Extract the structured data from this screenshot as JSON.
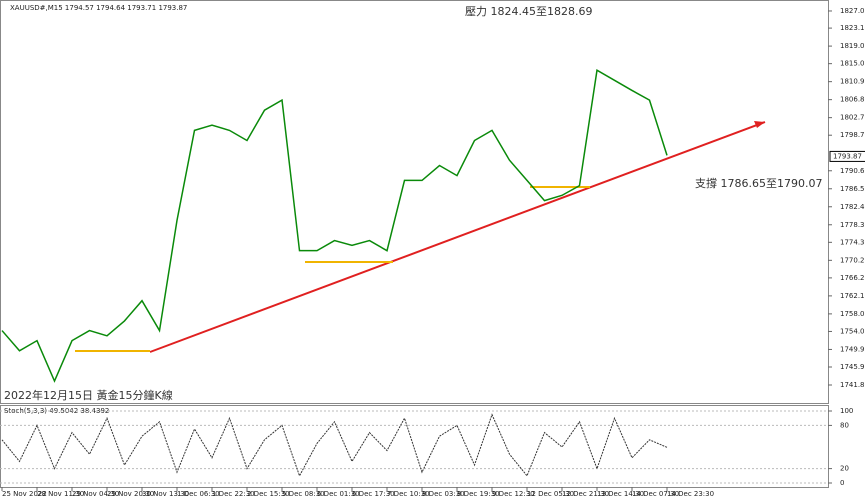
{
  "chart_data": [
    {
      "type": "line",
      "title": "XAUUSD#,M15 1794.57 1794.64 1793.71 1793.87",
      "annotations": [
        "壓力 1824.45至1828.69",
        "支撐 1786.65至1790.07",
        "2022年12月15日 黃金15分鐘K線"
      ],
      "categories": [
        "25 Nov 2022",
        null,
        "28 Nov 11:30",
        null,
        "29 Nov 04:30",
        null,
        "29 Nov 20:30",
        null,
        "30 Nov 13:30",
        null,
        "1 Dec 06:30",
        null,
        "1 Dec 22:30",
        null,
        "2 Dec 15:30",
        null,
        "5 Dec 08:30",
        null,
        "6 Dec 01:30",
        null,
        "6 Dec 17:30",
        null,
        "7 Dec 10:30",
        null,
        "8 Dec 03:30",
        null,
        "8 Dec 19:30",
        null,
        "9 Dec 12:30",
        null,
        "12 Dec 05:30",
        null,
        "12 Dec 21:30",
        null,
        "13 Dec 14:30",
        null,
        "14 Dec 07:30",
        null,
        "14 Dec 23:30"
      ],
      "series": [
        {
          "color": "#0a8a0a",
          "values": [
            1754.2,
            1749.6,
            1751.9,
            1742.7,
            1751.9,
            1754.2,
            1753.0,
            1756.4,
            1761.0,
            1754.2,
            1779.3,
            1799.8,
            1801.0,
            1799.8,
            1797.5,
            1804.4,
            1806.7,
            1772.4,
            1772.4,
            1774.7,
            1773.6,
            1774.7,
            1772.4,
            1788.4,
            1788.4,
            1791.8,
            1789.5,
            1797.5,
            1799.8,
            1793.0,
            1788.4,
            1783.8,
            1785.0,
            1787.2,
            1813.5,
            1811.2,
            1808.9,
            1806.7,
            1794.1
          ]
        }
      ],
      "ylim": [
        1737.7,
        1829.5
      ],
      "yticks": [
        {
          "value": 1741.8,
          "label": "1741.80"
        },
        {
          "value": 1745.9,
          "label": "1745.90"
        },
        {
          "value": 1749.9,
          "label": "1749.90"
        },
        {
          "value": 1754,
          "label": "1754.00"
        },
        {
          "value": 1758,
          "label": "1758.00"
        },
        {
          "value": 1762.1,
          "label": "1762.10"
        },
        {
          "value": 1766.2,
          "label": "1766.20"
        },
        {
          "value": 1770.2,
          "label": "1770.20"
        },
        {
          "value": 1774.3,
          "label": "1774.30"
        },
        {
          "value": 1778.3,
          "label": "1778.30"
        },
        {
          "value": 1782.4,
          "label": "1782.40"
        },
        {
          "value": 1786.5,
          "label": "1786.50"
        },
        {
          "value": 1790.6,
          "label": "1790.60"
        },
        {
          "value": 1798.7,
          "label": "1798.70"
        },
        {
          "value": 1802.7,
          "label": "1802.70"
        },
        {
          "value": 1806.8,
          "label": "1806.80"
        },
        {
          "value": 1810.9,
          "label": "1810.90"
        },
        {
          "value": 1815,
          "label": "1815.00"
        },
        {
          "value": 1819,
          "label": "1819.00"
        },
        {
          "value": 1823.1,
          "label": "1823.10"
        },
        {
          "value": 1827,
          "label": "1827.00"
        }
      ],
      "last_price": 1793.87
    },
    {
      "type": "line",
      "title": "Stoch(5,3,3) 49.5042 38.4392",
      "series": [
        {
          "color": "#333333",
          "values": [
            60,
            30,
            80,
            20,
            70,
            40,
            90,
            25,
            65,
            85,
            15,
            75,
            35,
            90,
            20,
            60,
            80,
            10,
            55,
            85,
            30,
            70,
            45,
            90,
            15,
            65,
            80,
            25,
            95,
            40,
            10,
            70,
            50,
            85,
            20,
            90,
            35,
            60,
            49.5
          ]
        }
      ],
      "ylim": [
        0,
        100
      ],
      "yticks": [
        0,
        20,
        80,
        100
      ]
    }
  ]
}
